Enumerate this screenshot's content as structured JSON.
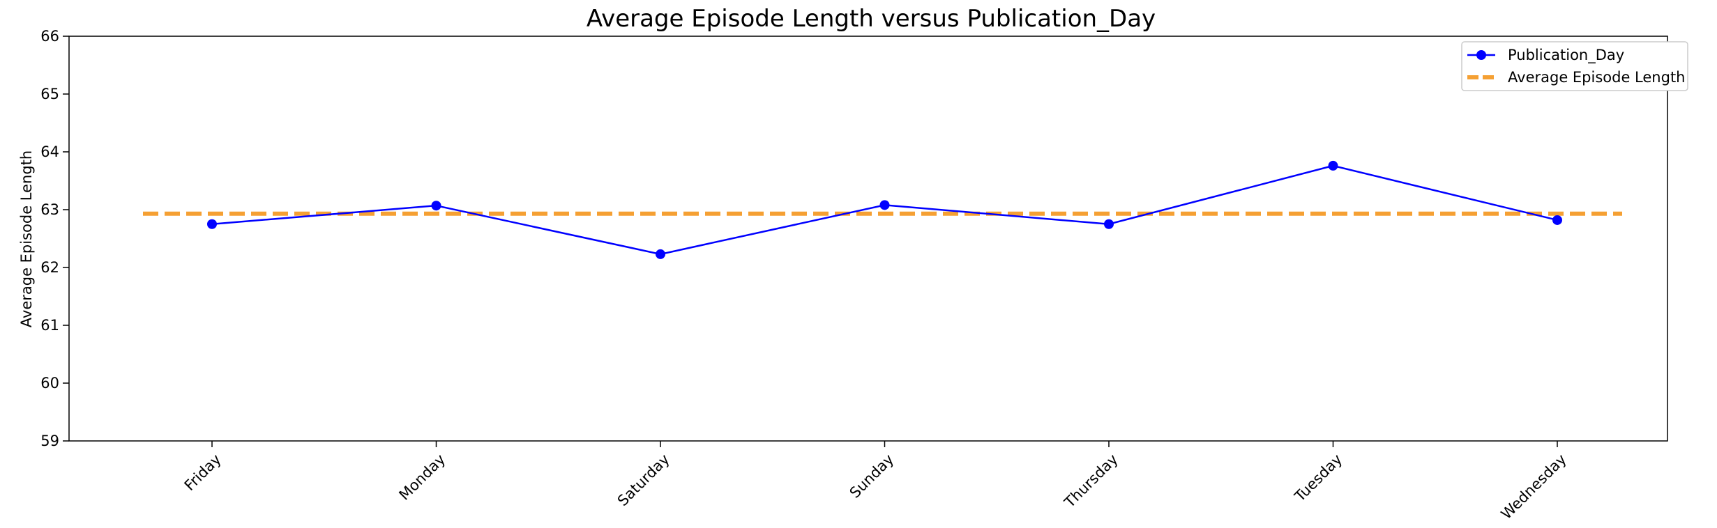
{
  "chart_data": {
    "type": "line",
    "title": "Average Episode Length versus Publication_Day",
    "xlabel": "",
    "ylabel": "Average Episode Length",
    "categories": [
      "Friday",
      "Monday",
      "Saturday",
      "Sunday",
      "Thursday",
      "Tuesday",
      "Wednesday"
    ],
    "series": [
      {
        "name": "Publication_Day",
        "values": [
          62.75,
          63.07,
          62.23,
          63.08,
          62.75,
          63.76,
          62.82
        ],
        "color": "#0000ff",
        "marker": "circle"
      }
    ],
    "reference_line": {
      "name": "Average Episode Length",
      "value": 62.93,
      "color": "#f5a033",
      "style": "dashed"
    },
    "ylim": [
      59,
      66
    ],
    "yticks": [
      59,
      60,
      61,
      62,
      63,
      64,
      65,
      66
    ],
    "grid": false,
    "legend_position": "top-right",
    "legend_entries": [
      "Publication_Day",
      "Average Episode Length"
    ]
  }
}
